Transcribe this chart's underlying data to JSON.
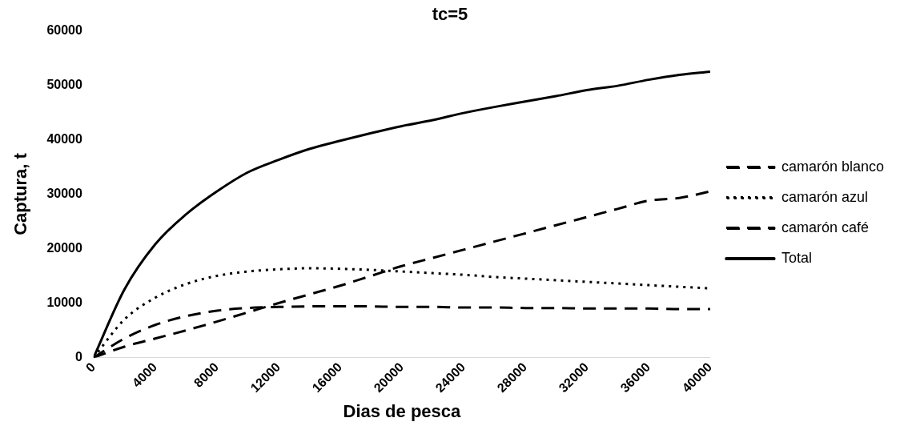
{
  "chart_data": {
    "type": "line",
    "title": "tc=5",
    "xlabel": "Dias de pesca",
    "ylabel": "Captura, t",
    "x": [
      0,
      2000,
      4000,
      6000,
      8000,
      10000,
      12000,
      14000,
      16000,
      18000,
      20000,
      22000,
      24000,
      26000,
      28000,
      30000,
      32000,
      34000,
      36000,
      38000,
      40000
    ],
    "xlim": [
      0,
      40000
    ],
    "xticks": [
      0,
      4000,
      8000,
      12000,
      16000,
      20000,
      24000,
      28000,
      32000,
      36000,
      40000
    ],
    "ylim": [
      0,
      60000
    ],
    "yticks": [
      0,
      10000,
      20000,
      30000,
      40000,
      50000,
      60000
    ],
    "grid": false,
    "legend": "right",
    "marker": "none",
    "series": [
      {
        "name": "camarón blanco",
        "color": "#000000",
        "line_style": "dashed",
        "values": [
          0,
          3500,
          6000,
          7600,
          8600,
          9100,
          9300,
          9400,
          9400,
          9400,
          9300,
          9300,
          9200,
          9200,
          9100,
          9100,
          9000,
          9000,
          9000,
          8900,
          8900
        ]
      },
      {
        "name": "camarón azul",
        "color": "#000000",
        "line_style": "dotted",
        "values": [
          0,
          7000,
          11000,
          13500,
          15000,
          15800,
          16200,
          16400,
          16300,
          16100,
          15800,
          15500,
          15200,
          14800,
          14500,
          14200,
          13900,
          13600,
          13300,
          13000,
          12700
        ]
      },
      {
        "name": "camarón café",
        "color": "#000000",
        "line_style": "dashed",
        "values": [
          0,
          2000,
          3500,
          5000,
          6600,
          8300,
          10000,
          11600,
          13200,
          15000,
          16800,
          18300,
          19800,
          21300,
          22800,
          24300,
          25800,
          27300,
          28800,
          29300,
          30500
        ]
      },
      {
        "name": "Total",
        "color": "#000000",
        "line_style": "solid",
        "values": [
          0,
          12500,
          20800,
          26300,
          30500,
          34000,
          36300,
          38300,
          39800,
          41200,
          42500,
          43600,
          44900,
          46000,
          47000,
          48000,
          49100,
          49900,
          51000,
          51900,
          52500
        ]
      }
    ]
  }
}
